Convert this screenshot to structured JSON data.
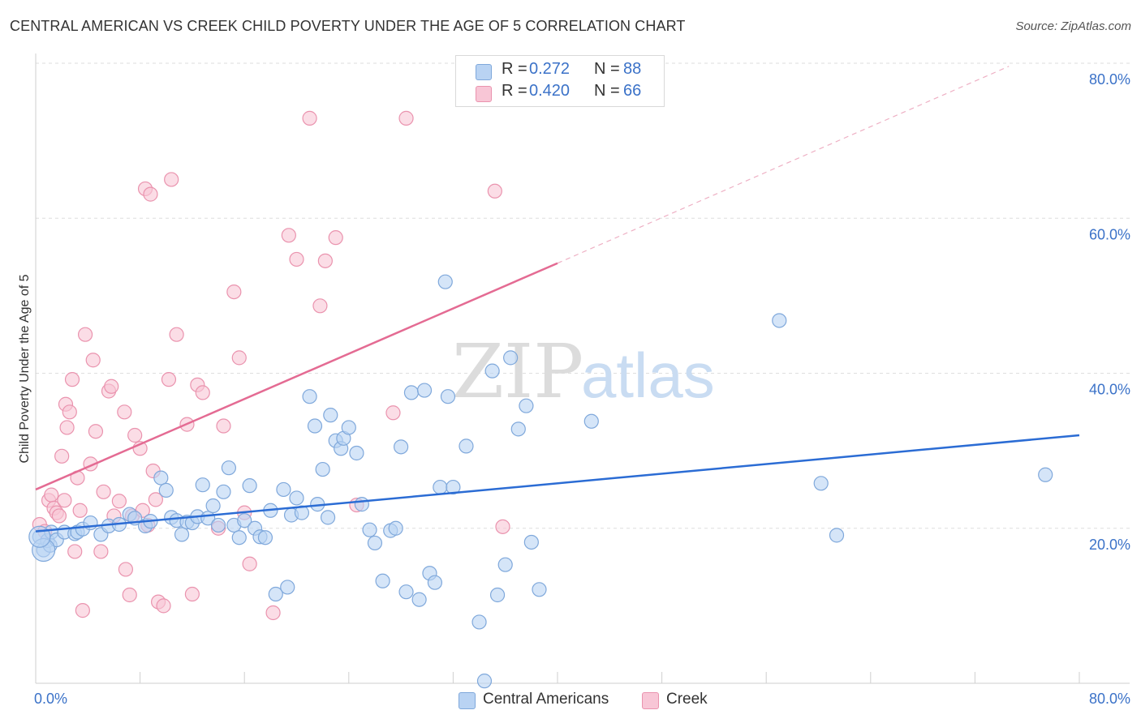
{
  "title": "CENTRAL AMERICAN VS CREEK CHILD POVERTY UNDER THE AGE OF 5 CORRELATION CHART",
  "source": "Source: ZipAtlas.com",
  "watermark": {
    "zip": "ZIP",
    "atlas": "atlas"
  },
  "colors": {
    "blue_fill": "#b9d3f3",
    "blue_stroke": "#7fa8db",
    "blue_line": "#2b6cd4",
    "pink_fill": "#f8c6d6",
    "pink_stroke": "#ea93ae",
    "pink_line": "#e46b93",
    "axis_text": "#3b72c8",
    "grid": "#dedede"
  },
  "legend": {
    "rows": [
      {
        "r_label": "R =",
        "r_value": "0.272",
        "n_label": "N =",
        "n_value": "88"
      },
      {
        "r_label": "R =",
        "r_value": "0.420",
        "n_label": "N =",
        "n_value": "66"
      }
    ]
  },
  "bottom_legend": [
    "Central Americans",
    "Creek"
  ],
  "chart_data": {
    "type": "scatter",
    "title": "CENTRAL AMERICAN VS CREEK CHILD POVERTY UNDER THE AGE OF 5 CORRELATION CHART",
    "xlabel": "",
    "ylabel": "Child Poverty Under the Age of 5",
    "xlim": [
      0,
      80
    ],
    "ylim": [
      0,
      80
    ],
    "x_tick_labels": [
      "0.0%",
      "80.0%"
    ],
    "y_ticks": [
      20,
      40,
      60,
      80
    ],
    "y_tick_labels": [
      "20.0%",
      "40.0%",
      "60.0%",
      "80.0%"
    ],
    "grid": true,
    "legend_position": "top-center",
    "series": [
      {
        "name": "Central Americans",
        "r": 0.272,
        "n": 88,
        "trend": {
          "x": [
            0,
            80
          ],
          "y": [
            19.6,
            32.0
          ]
        },
        "points": [
          [
            0.3,
            18.9
          ],
          [
            0.6,
            17.2
          ],
          [
            0.9,
            18.4
          ],
          [
            1.1,
            17.8
          ],
          [
            1.2,
            19.5
          ],
          [
            1.6,
            18.5
          ],
          [
            2.2,
            19.5
          ],
          [
            3.0,
            19.3
          ],
          [
            3.2,
            19.5
          ],
          [
            3.6,
            19.9
          ],
          [
            4.2,
            20.7
          ],
          [
            5.0,
            19.2
          ],
          [
            5.6,
            20.3
          ],
          [
            6.4,
            20.5
          ],
          [
            7.2,
            21.8
          ],
          [
            7.6,
            21.3
          ],
          [
            8.4,
            20.3
          ],
          [
            8.8,
            20.9
          ],
          [
            9.6,
            26.5
          ],
          [
            10.0,
            24.9
          ],
          [
            10.4,
            21.4
          ],
          [
            10.8,
            21.0
          ],
          [
            11.2,
            19.2
          ],
          [
            11.6,
            20.8
          ],
          [
            12.0,
            20.7
          ],
          [
            12.4,
            21.5
          ],
          [
            12.8,
            25.6
          ],
          [
            13.2,
            21.3
          ],
          [
            13.6,
            22.9
          ],
          [
            14.0,
            20.4
          ],
          [
            14.4,
            24.7
          ],
          [
            14.8,
            27.8
          ],
          [
            15.2,
            20.4
          ],
          [
            15.6,
            18.8
          ],
          [
            16.0,
            21.0
          ],
          [
            16.4,
            25.5
          ],
          [
            16.8,
            20.0
          ],
          [
            17.2,
            18.9
          ],
          [
            17.6,
            18.8
          ],
          [
            18.0,
            22.3
          ],
          [
            18.4,
            11.5
          ],
          [
            19.0,
            25.0
          ],
          [
            19.3,
            12.4
          ],
          [
            19.6,
            21.7
          ],
          [
            20.0,
            23.9
          ],
          [
            20.4,
            22.0
          ],
          [
            21.0,
            37.0
          ],
          [
            21.4,
            33.2
          ],
          [
            21.6,
            23.1
          ],
          [
            22.0,
            27.6
          ],
          [
            22.4,
            21.4
          ],
          [
            22.6,
            34.6
          ],
          [
            23.0,
            31.3
          ],
          [
            23.4,
            30.3
          ],
          [
            23.6,
            31.6
          ],
          [
            24.0,
            33.0
          ],
          [
            24.6,
            29.7
          ],
          [
            25.0,
            23.1
          ],
          [
            25.6,
            19.8
          ],
          [
            26.0,
            18.1
          ],
          [
            26.6,
            13.2
          ],
          [
            27.2,
            19.7
          ],
          [
            27.6,
            20.0
          ],
          [
            28.0,
            30.5
          ],
          [
            28.4,
            11.8
          ],
          [
            28.8,
            37.5
          ],
          [
            29.4,
            10.8
          ],
          [
            29.8,
            37.8
          ],
          [
            30.2,
            14.2
          ],
          [
            30.6,
            13.0
          ],
          [
            31.0,
            25.3
          ],
          [
            31.4,
            51.8
          ],
          [
            31.6,
            37.0
          ],
          [
            32.0,
            25.3
          ],
          [
            33.0,
            30.6
          ],
          [
            34.0,
            7.9
          ],
          [
            34.4,
            0.3
          ],
          [
            35.0,
            40.3
          ],
          [
            35.4,
            11.4
          ],
          [
            36.0,
            15.3
          ],
          [
            36.4,
            42.0
          ],
          [
            37.0,
            32.8
          ],
          [
            37.6,
            35.8
          ],
          [
            38.0,
            18.2
          ],
          [
            38.6,
            12.1
          ],
          [
            42.6,
            33.8
          ],
          [
            57.0,
            46.8
          ],
          [
            60.2,
            25.8
          ],
          [
            61.4,
            19.1
          ],
          [
            77.4,
            26.9
          ]
        ]
      },
      {
        "name": "Creek",
        "r": 0.42,
        "n": 66,
        "trend": {
          "x": [
            0,
            40
          ],
          "y": [
            25.0,
            54.2
          ]
        },
        "trend_dashed": {
          "x": [
            40,
            74.6
          ],
          "y": [
            54.2,
            79.6
          ]
        },
        "points": [
          [
            0.3,
            20.5
          ],
          [
            0.7,
            19.6
          ],
          [
            1.0,
            23.6
          ],
          [
            1.2,
            24.3
          ],
          [
            1.4,
            22.6
          ],
          [
            1.6,
            22.0
          ],
          [
            1.8,
            21.6
          ],
          [
            2.0,
            29.3
          ],
          [
            2.2,
            23.6
          ],
          [
            2.3,
            36.0
          ],
          [
            2.4,
            33.0
          ],
          [
            2.6,
            35.0
          ],
          [
            2.8,
            39.2
          ],
          [
            3.0,
            17.0
          ],
          [
            3.2,
            26.5
          ],
          [
            3.4,
            22.3
          ],
          [
            3.6,
            9.4
          ],
          [
            3.8,
            45.0
          ],
          [
            4.2,
            28.3
          ],
          [
            4.4,
            41.7
          ],
          [
            4.6,
            32.5
          ],
          [
            5.0,
            17.0
          ],
          [
            5.2,
            24.7
          ],
          [
            5.6,
            37.7
          ],
          [
            5.8,
            38.3
          ],
          [
            6.0,
            21.6
          ],
          [
            6.4,
            23.5
          ],
          [
            6.8,
            35.0
          ],
          [
            6.9,
            14.7
          ],
          [
            7.2,
            11.4
          ],
          [
            7.4,
            21.6
          ],
          [
            7.6,
            32.0
          ],
          [
            8.0,
            30.3
          ],
          [
            8.2,
            22.3
          ],
          [
            8.4,
            63.8
          ],
          [
            8.6,
            20.4
          ],
          [
            8.8,
            63.1
          ],
          [
            9.0,
            27.4
          ],
          [
            9.2,
            23.7
          ],
          [
            9.4,
            10.5
          ],
          [
            9.8,
            10.0
          ],
          [
            10.2,
            39.2
          ],
          [
            10.4,
            65.0
          ],
          [
            10.8,
            45.0
          ],
          [
            11.6,
            33.4
          ],
          [
            12.0,
            11.5
          ],
          [
            12.4,
            38.5
          ],
          [
            12.8,
            37.5
          ],
          [
            14.0,
            20.0
          ],
          [
            14.4,
            33.2
          ],
          [
            15.2,
            50.5
          ],
          [
            15.6,
            42.0
          ],
          [
            16.0,
            22.0
          ],
          [
            16.4,
            15.4
          ],
          [
            18.2,
            9.1
          ],
          [
            19.4,
            57.8
          ],
          [
            20.0,
            54.7
          ],
          [
            21.0,
            72.9
          ],
          [
            21.8,
            48.7
          ],
          [
            22.2,
            54.5
          ],
          [
            23.0,
            57.5
          ],
          [
            24.6,
            23.0
          ],
          [
            27.4,
            34.9
          ],
          [
            28.4,
            72.9
          ],
          [
            35.2,
            63.5
          ],
          [
            35.8,
            20.2
          ]
        ]
      }
    ]
  }
}
